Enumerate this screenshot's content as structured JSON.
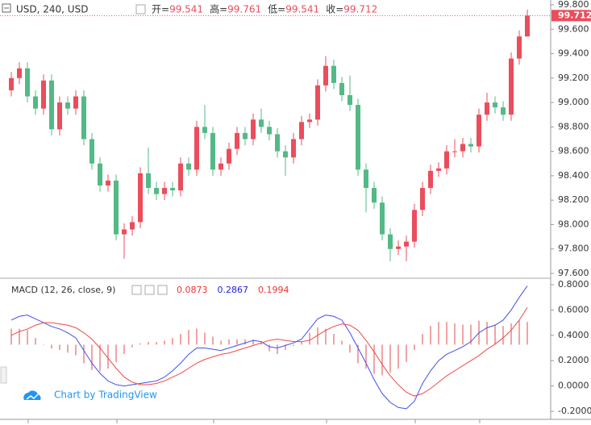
{
  "chart_data": [
    {
      "type": "candlestick",
      "title": "USD, 240, USD",
      "ohlc_labels": [
        "开=",
        "高=",
        "低=",
        "收="
      ],
      "up_color": "#eb4d5c",
      "down_color": "#53b987",
      "open": [
        99.1,
        99.2,
        99.28,
        99.05,
        98.95,
        99.18,
        98.78,
        99.0,
        98.95,
        99.05,
        98.7,
        98.5,
        98.32,
        98.36,
        97.92,
        97.96,
        98.02,
        98.42,
        98.3,
        98.25,
        98.3,
        98.28,
        98.5,
        98.45,
        98.8,
        98.75,
        98.45,
        98.5,
        98.62,
        98.75,
        98.7,
        98.86,
        98.8,
        98.74,
        98.6,
        98.55,
        98.7,
        98.84,
        98.86,
        99.14,
        99.3,
        99.16,
        99.06,
        98.98,
        98.45,
        98.3,
        98.18,
        97.92,
        97.8,
        97.82,
        97.86,
        98.12,
        98.3,
        98.44,
        98.46,
        98.6,
        98.6,
        98.66,
        98.64,
        98.9,
        99.0,
        98.96,
        98.9,
        99.36,
        99.541
      ],
      "high": [
        99.25,
        99.33,
        99.33,
        99.1,
        99.23,
        99.23,
        99.05,
        99.05,
        99.1,
        99.1,
        98.75,
        98.55,
        98.41,
        98.41,
        98.01,
        98.07,
        98.47,
        98.63,
        98.35,
        98.35,
        98.35,
        98.55,
        98.55,
        98.85,
        98.98,
        98.8,
        98.55,
        98.67,
        98.8,
        98.8,
        98.91,
        98.95,
        98.85,
        98.79,
        98.65,
        98.75,
        98.89,
        98.91,
        99.19,
        99.38,
        99.35,
        99.21,
        99.22,
        99.03,
        98.5,
        98.35,
        98.23,
        97.97,
        97.87,
        97.91,
        98.17,
        98.35,
        98.49,
        98.51,
        98.65,
        98.7,
        98.71,
        98.71,
        98.95,
        99.08,
        99.05,
        99.01,
        99.41,
        99.59,
        99.761
      ],
      "low": [
        99.05,
        99.15,
        99.0,
        98.9,
        98.9,
        98.73,
        98.73,
        98.9,
        98.9,
        98.65,
        98.45,
        98.27,
        98.27,
        97.87,
        97.72,
        97.91,
        97.97,
        98.25,
        98.2,
        98.2,
        98.23,
        98.23,
        98.4,
        98.4,
        98.7,
        98.4,
        98.4,
        98.45,
        98.57,
        98.65,
        98.65,
        98.75,
        98.69,
        98.55,
        98.4,
        98.5,
        98.65,
        98.79,
        98.81,
        99.09,
        99.11,
        99.01,
        98.93,
        98.4,
        98.1,
        98.13,
        97.87,
        97.7,
        97.75,
        97.7,
        97.81,
        98.07,
        98.25,
        98.39,
        98.41,
        98.55,
        98.55,
        98.59,
        98.59,
        98.85,
        98.91,
        98.85,
        98.85,
        99.31,
        99.541
      ],
      "close": [
        99.2,
        99.28,
        99.05,
        98.95,
        99.18,
        98.78,
        99.0,
        98.95,
        99.05,
        98.7,
        98.5,
        98.32,
        98.36,
        97.92,
        97.96,
        98.02,
        98.42,
        98.3,
        98.25,
        98.3,
        98.28,
        98.5,
        98.45,
        98.8,
        98.75,
        98.45,
        98.5,
        98.62,
        98.75,
        98.7,
        98.86,
        98.8,
        98.74,
        98.6,
        98.55,
        98.7,
        98.84,
        98.86,
        99.14,
        99.3,
        99.16,
        99.06,
        98.98,
        98.45,
        98.3,
        98.18,
        97.92,
        97.8,
        97.82,
        97.86,
        98.12,
        98.3,
        98.44,
        98.46,
        98.6,
        98.6,
        98.66,
        98.64,
        98.9,
        99.0,
        98.96,
        98.9,
        99.36,
        99.541,
        99.712
      ],
      "ylim": [
        97.6,
        99.8
      ],
      "yticks": [
        {
          "value": 97.6,
          "label": "97.600"
        },
        {
          "value": 97.8,
          "label": "97.800"
        },
        {
          "value": 98.0,
          "label": "98.000"
        },
        {
          "value": 98.2,
          "label": "98.200"
        },
        {
          "value": 98.4,
          "label": "98.400"
        },
        {
          "value": 98.6,
          "label": "98.600"
        },
        {
          "value": 98.8,
          "label": "98.800"
        },
        {
          "value": 99.0,
          "label": "99.000"
        },
        {
          "value": 99.2,
          "label": "99.200"
        },
        {
          "value": 99.4,
          "label": "99.400"
        },
        {
          "value": 99.6,
          "label": "99.600"
        },
        {
          "value": 99.8,
          "label": "99.800"
        }
      ]
    },
    {
      "type": "line",
      "title": "MACD (12, 26, close, 9)",
      "indicator_values": [
        {
          "value": 0.0873,
          "color": "#ee3333"
        },
        {
          "value": 0.2867,
          "color": "#2222dd"
        },
        {
          "value": 0.1994,
          "color": "#ee3333"
        }
      ],
      "series": [
        {
          "color": "#e04a4a",
          "axis": "y2",
          "style": "bar",
          "values": [
            0.12,
            0.12,
            0.11,
            0.05,
            0,
            -0.03,
            -0.04,
            -0.06,
            -0.08,
            -0.14,
            -0.19,
            -0.2,
            -0.18,
            -0.13,
            -0.07,
            -0.02,
            0.01,
            0.02,
            0.02,
            0.03,
            0.05,
            0.08,
            0.11,
            0.12,
            0.09,
            0.06,
            0.03,
            0.04,
            0.04,
            0.04,
            0.04,
            0.01,
            -0.05,
            -0.07,
            -0.04,
            -0.01,
            0.02,
            0.09,
            0.13,
            0.12,
            0.08,
            0.03,
            -0.06,
            -0.14,
            -0.18,
            -0.22,
            -0.23,
            -0.21,
            -0.18,
            -0.13,
            -0.04,
            0.08,
            0.14,
            0.17,
            0.17,
            0.16,
            0.15,
            0.15,
            0.18,
            0.17,
            0.15,
            0.14,
            0.16,
            0.18,
            0.17
          ]
        },
        {
          "color": "#3f51e8",
          "values": [
            0.52,
            0.55,
            0.56,
            0.53,
            0.5,
            0.47,
            0.45,
            0.42,
            0.38,
            0.28,
            0.18,
            0.1,
            0.04,
            0.01,
            0.0,
            0.01,
            0.02,
            0.03,
            0.04,
            0.07,
            0.12,
            0.18,
            0.25,
            0.3,
            0.3,
            0.29,
            0.28,
            0.3,
            0.32,
            0.34,
            0.36,
            0.35,
            0.31,
            0.3,
            0.32,
            0.34,
            0.37,
            0.45,
            0.53,
            0.56,
            0.55,
            0.52,
            0.42,
            0.3,
            0.18,
            0.05,
            -0.06,
            -0.13,
            -0.17,
            -0.18,
            -0.12,
            0.02,
            0.12,
            0.2,
            0.25,
            0.28,
            0.31,
            0.35,
            0.42,
            0.46,
            0.48,
            0.52,
            0.6,
            0.7,
            0.79
          ]
        },
        {
          "color": "#f04848",
          "values": [
            0.4,
            0.43,
            0.45,
            0.48,
            0.5,
            0.5,
            0.49,
            0.48,
            0.46,
            0.42,
            0.37,
            0.3,
            0.22,
            0.14,
            0.07,
            0.03,
            0.01,
            0.01,
            0.02,
            0.04,
            0.07,
            0.1,
            0.14,
            0.18,
            0.21,
            0.23,
            0.25,
            0.26,
            0.28,
            0.3,
            0.32,
            0.34,
            0.36,
            0.37,
            0.36,
            0.35,
            0.35,
            0.36,
            0.4,
            0.44,
            0.47,
            0.49,
            0.48,
            0.44,
            0.36,
            0.27,
            0.17,
            0.08,
            0.01,
            -0.05,
            -0.08,
            -0.06,
            -0.02,
            0.03,
            0.08,
            0.12,
            0.16,
            0.2,
            0.24,
            0.29,
            0.33,
            0.38,
            0.44,
            0.52,
            0.62
          ]
        }
      ],
      "ylim": [
        -0.2,
        0.8
      ],
      "yticks": [
        {
          "value": -0.2,
          "label": "-0.2000"
        },
        {
          "value": 0,
          "label": "0.0000"
        },
        {
          "value": 0.2,
          "label": "0.2000"
        },
        {
          "value": 0.4,
          "label": "0.4000"
        },
        {
          "value": 0.6,
          "label": "0.6000"
        },
        {
          "value": 0.8,
          "label": "0.8000"
        }
      ],
      "y2lim": [
        -0.5,
        0.45
      ]
    }
  ],
  "watermark": "Chart by TradingView"
}
